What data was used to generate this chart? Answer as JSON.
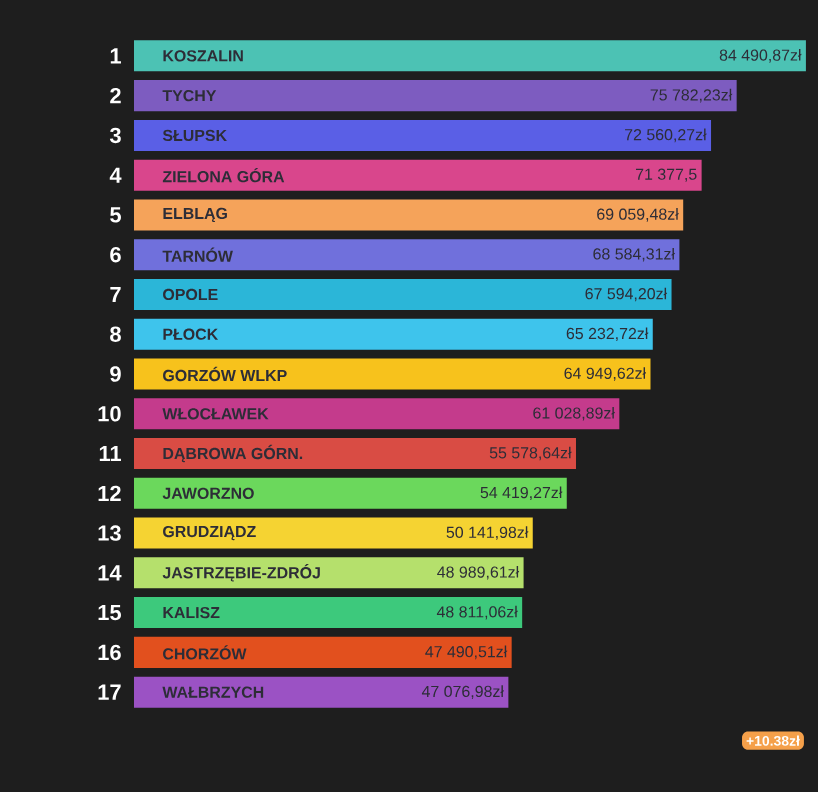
{
  "chart_data": {
    "type": "bar",
    "orientation": "horizontal",
    "categories": [
      "KOSZALIN",
      "TYCHY",
      "SŁUPSK",
      "ZIELONA GÓRA",
      "ELBLĄG",
      "TARNÓW",
      "OPOLE",
      "PŁOCK",
      "GORZÓW WLKP",
      "WŁOCŁAWEK",
      "DĄBROWA GÓRN.",
      "JAWORZNO",
      "GRUDZIĄDZ",
      "JASTRZĘBIE-ZDRÓJ",
      "KALISZ",
      "CHORZÓW",
      "WAŁBRZYCH"
    ],
    "values": [
      84490.87,
      75782.23,
      72560.27,
      71377.5,
      69059.48,
      68584.31,
      67594.2,
      65232.72,
      64949.62,
      61028.89,
      55578.64,
      54419.27,
      50141.98,
      48989.61,
      48811.06,
      47490.51,
      47076.98
    ],
    "value_labels": [
      "84 490,87zł",
      "75 782,23zł",
      "72 560,27zł",
      "71 377,5",
      "69 059,48zł",
      "68 584,31zł",
      "67 594,20zł",
      "65 232,72zł",
      "64 949,62zł",
      "61 028,89zł",
      "55 578,64zł",
      "54 419,27zł",
      "50 141,98zł",
      "48 989,61zł",
      "48 811,06zł",
      "47 490,51zł",
      "47 076,98zł"
    ],
    "colors": [
      "#4cc2b4",
      "#7d5cc0",
      "#5a5fe6",
      "#d9468c",
      "#f5a35a",
      "#7070dc",
      "#2bb6d8",
      "#3ec4ec",
      "#f7c21c",
      "#c43b8c",
      "#d94c44",
      "#6bd85c",
      "#f5d332",
      "#b5e06c",
      "#3dc97c",
      "#e2501e",
      "#9b52c4"
    ],
    "annotations": [
      "1",
      "2",
      "3",
      "4",
      "5",
      "6",
      "7",
      "8",
      "9",
      "10",
      "11",
      "12",
      "13",
      "14",
      "15",
      "16",
      "17",
      "+10.38zł"
    ]
  }
}
